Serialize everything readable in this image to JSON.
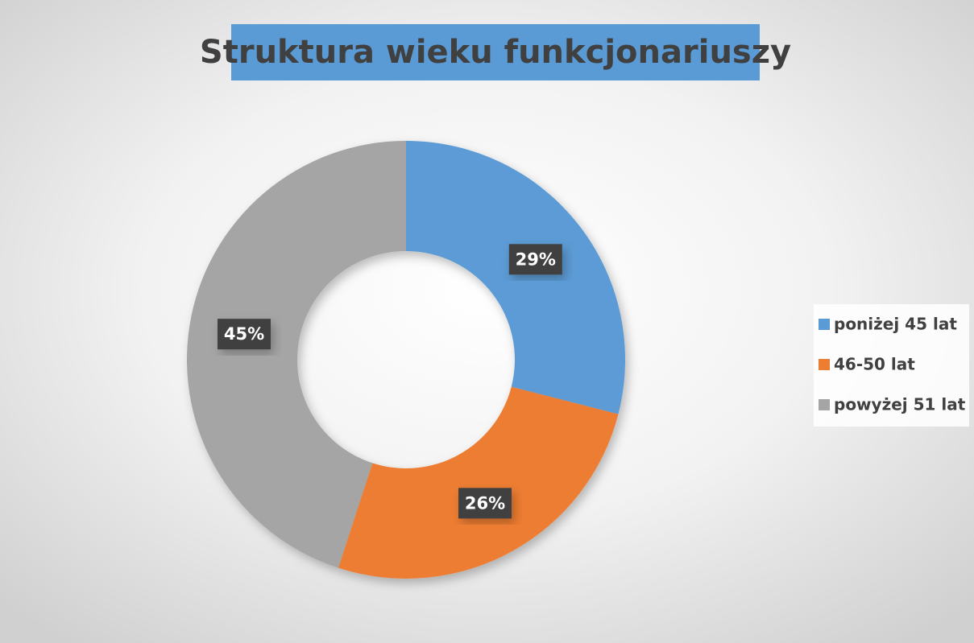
{
  "chart_data": {
    "type": "donut",
    "title": "Struktura wieku funkcjonariuszy",
    "categories": [
      "poniżej 45 lat",
      "46-50 lat",
      "powyżej 51 lat"
    ],
    "values": [
      29,
      26,
      45
    ],
    "value_labels": [
      "29%",
      "26%",
      "45%"
    ],
    "colors": [
      "#5b9bd5",
      "#ed7d31",
      "#a5a5a5"
    ],
    "legend": "right"
  }
}
